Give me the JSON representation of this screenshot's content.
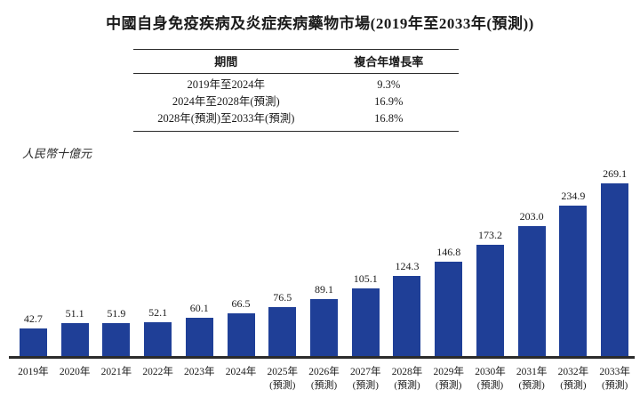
{
  "title": "中國自身免疫疾病及炎症疾病藥物市場(2019年至2033年(預測))",
  "unit_label": "人民幣十億元",
  "table": {
    "headers": [
      "期間",
      "複合年增長率"
    ],
    "rows": [
      {
        "period": "2019年至2024年",
        "cagr": "9.3%"
      },
      {
        "period": "2024年至2028年(預測)",
        "cagr": "16.9%"
      },
      {
        "period": "2028年(預測)至2033年(預測)",
        "cagr": "16.8%"
      }
    ]
  },
  "chart_data": {
    "type": "bar",
    "title": "中國自身免疫疾病及炎症疾病藥物市場(2019年至2033年(預測))",
    "xlabel": "",
    "ylabel": "人民幣十億元",
    "ylim": [
      0,
      280
    ],
    "grid": false,
    "legend": "none",
    "bar_color": "#1f3f97",
    "categories": [
      "2019年",
      "2020年",
      "2021年",
      "2022年",
      "2023年",
      "2024年",
      "2025年",
      "2026年",
      "2027年",
      "2028年",
      "2029年",
      "2030年",
      "2031年",
      "2032年",
      "2033年"
    ],
    "category_sublabels": [
      "",
      "",
      "",
      "",
      "",
      "",
      "(預測)",
      "(預測)",
      "(預測)",
      "(預測)",
      "(預測)",
      "(預測)",
      "(預測)",
      "(預測)",
      "(預測)"
    ],
    "values": [
      42.7,
      51.1,
      51.9,
      52.1,
      60.1,
      66.5,
      76.5,
      89.1,
      105.1,
      124.3,
      146.8,
      173.2,
      203.0,
      234.9,
      269.1
    ]
  }
}
